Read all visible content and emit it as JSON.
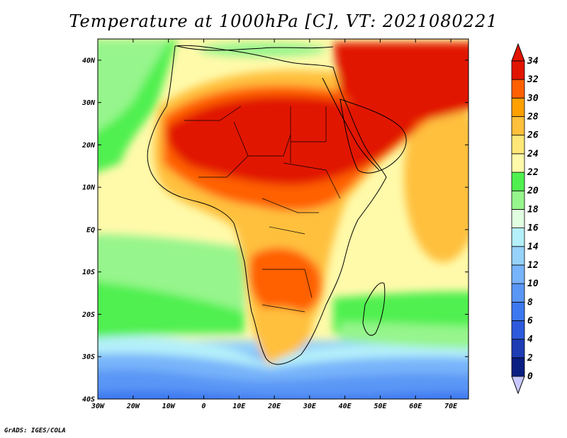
{
  "map": {
    "title": "Temperature at 1000hPa [C], VT: 2021080221",
    "variable": "Temperature",
    "level": "1000hPa",
    "units": "C",
    "valid_time": "2021080221",
    "credit": "GrADS: IGES/COLA",
    "lon_range": [
      -30,
      75
    ],
    "lat_range": [
      -40,
      45
    ],
    "lon_ticks": [
      {
        "value": -30,
        "label": "30W"
      },
      {
        "value": -20,
        "label": "20W"
      },
      {
        "value": -10,
        "label": "10W"
      },
      {
        "value": 0,
        "label": "0"
      },
      {
        "value": 10,
        "label": "10E"
      },
      {
        "value": 20,
        "label": "20E"
      },
      {
        "value": 30,
        "label": "30E"
      },
      {
        "value": 40,
        "label": "40E"
      },
      {
        "value": 50,
        "label": "50E"
      },
      {
        "value": 60,
        "label": "60E"
      },
      {
        "value": 70,
        "label": "70E"
      }
    ],
    "lat_ticks": [
      {
        "value": 40,
        "label": "40N"
      },
      {
        "value": 30,
        "label": "30N"
      },
      {
        "value": 20,
        "label": "20N"
      },
      {
        "value": 10,
        "label": "10N"
      },
      {
        "value": 0,
        "label": "EQ"
      },
      {
        "value": -10,
        "label": "10S"
      },
      {
        "value": -20,
        "label": "20S"
      },
      {
        "value": -30,
        "label": "30S"
      },
      {
        "value": -40,
        "label": "40S"
      }
    ]
  },
  "colorbar": {
    "levels": [
      {
        "value": "0",
        "color": "#c8c8ff"
      },
      {
        "value": "2",
        "color": "#0a1e82"
      },
      {
        "value": "4",
        "color": "#1e3cb4"
      },
      {
        "value": "6",
        "color": "#2d5adc"
      },
      {
        "value": "8",
        "color": "#3c78f0"
      },
      {
        "value": "10",
        "color": "#5a96f5"
      },
      {
        "value": "12",
        "color": "#78b4fa"
      },
      {
        "value": "14",
        "color": "#96d2fa"
      },
      {
        "value": "16",
        "color": "#b4f0fa"
      },
      {
        "value": "18",
        "color": "#e1ffe1"
      },
      {
        "value": "20",
        "color": "#96f58c"
      },
      {
        "value": "22",
        "color": "#50f050"
      },
      {
        "value": "24",
        "color": "#fffaaa"
      },
      {
        "value": "26",
        "color": "#ffe878"
      },
      {
        "value": "28",
        "color": "#ffc03c"
      },
      {
        "value": "30",
        "color": "#ffa000"
      },
      {
        "value": "32",
        "color": "#ff6000"
      },
      {
        "value": "34",
        "color": "#e11400"
      }
    ],
    "top_color": "#e11400",
    "bottom_color": "#c8c8ff"
  }
}
